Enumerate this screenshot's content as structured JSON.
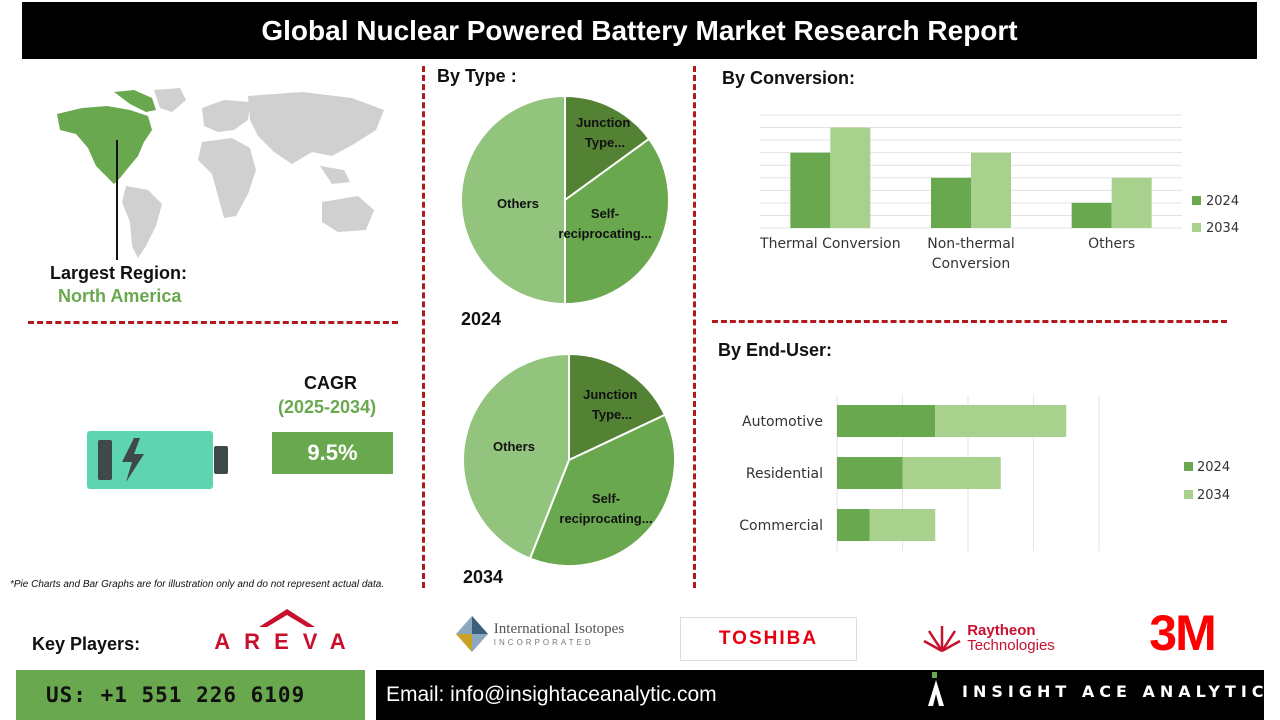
{
  "header": {
    "title": "Global Nuclear Powered Battery Market Research Report"
  },
  "region": {
    "label": "Largest Region:",
    "value": "North America"
  },
  "cagr": {
    "label": "CAGR",
    "period": "(2025-2034)",
    "value": "9.5%"
  },
  "note": "*Pie Charts and Bar Graphs are for illustration only and do not represent actual data.",
  "sections": {
    "by_type": "By Type :",
    "by_conversion": "By  Conversion:",
    "by_end_user": "By End-User:"
  },
  "key_players": {
    "label": "Key Players:",
    "logos": [
      {
        "name": "AREVA",
        "text": "AREVA",
        "color": "#c8102e"
      },
      {
        "name": "International Isotopes",
        "text": "International Isotopes",
        "sub": "INCORPORATED",
        "color": "#555555"
      },
      {
        "name": "TOSHIBA",
        "text": "TOSHIBA",
        "color": "#e60012"
      },
      {
        "name": "Raytheon Technologies",
        "text": "Raytheon",
        "sub": "Technologies",
        "color": "#c8102e"
      },
      {
        "name": "3M",
        "text": "3M",
        "color": "#ff0000"
      }
    ]
  },
  "footer": {
    "phone": "US: +1 551 226 6109",
    "email": "Email: info@insightaceanalytic.com",
    "brand": "INSIGHT ACE ANALYTIC"
  },
  "colors": {
    "dark_green": "#548235",
    "mid_green": "#6aa84f",
    "light_green": "#93c47d",
    "pale_green": "#a9d18e",
    "battery": "#5fd4b0"
  },
  "icons": [
    "world-map-icon",
    "battery-icon",
    "lightning-icon"
  ],
  "chart_data": [
    {
      "type": "pie",
      "title": "2024",
      "slices": [
        {
          "label": "Junction Type...",
          "value": 15
        },
        {
          "label": "Self-reciprocating...",
          "value": 35
        },
        {
          "label": "Others",
          "value": 50
        }
      ]
    },
    {
      "type": "pie",
      "title": "2034",
      "slices": [
        {
          "label": "Junction Type...",
          "value": 18
        },
        {
          "label": "Self-reciprocating...",
          "value": 38
        },
        {
          "label": "Others",
          "value": 44
        }
      ]
    },
    {
      "type": "bar",
      "title": "By  Conversion:",
      "categories": [
        "Thermal Conversion",
        "Non-thermal Conversion",
        "Others"
      ],
      "series": [
        {
          "name": "2024",
          "values": [
            3,
            2,
            1
          ]
        },
        {
          "name": "2034",
          "values": [
            4,
            3,
            2
          ]
        }
      ],
      "ylim": [
        0,
        4.5
      ],
      "grid": true,
      "legend": "right"
    },
    {
      "type": "bar",
      "orientation": "horizontal",
      "stacked": true,
      "title": "By End-User:",
      "categories": [
        "Automotive",
        "Residential",
        "Commercial"
      ],
      "series": [
        {
          "name": "2024",
          "values": [
            3,
            2,
            1
          ]
        },
        {
          "name": "2034",
          "values": [
            4,
            3,
            2
          ]
        }
      ],
      "xlim": [
        0,
        8
      ],
      "grid": true,
      "legend": "right"
    }
  ]
}
